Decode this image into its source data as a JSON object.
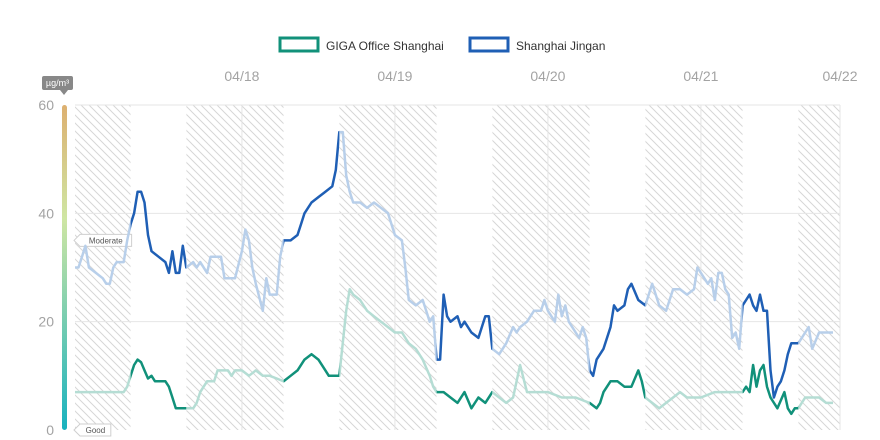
{
  "chart_data": {
    "type": "line",
    "unit": "µg/m³",
    "ylim": [
      0,
      60
    ],
    "yticks": [
      0,
      20,
      40,
      60
    ],
    "xlim": [
      0,
      110
    ],
    "xticks": [
      {
        "x": 24,
        "label": "04/18"
      },
      {
        "x": 46,
        "label": "04/19"
      },
      {
        "x": 68,
        "label": "04/20"
      },
      {
        "x": 90,
        "label": "04/21"
      },
      {
        "x": 110,
        "label": "04/22"
      }
    ],
    "grid": true,
    "legend_placement": "top-center",
    "aqi_levels": [
      {
        "label": "Good",
        "value": 0
      },
      {
        "label": "Moderate",
        "value": 35
      }
    ],
    "open_periods": [
      [
        8,
        16
      ],
      [
        30,
        38
      ],
      [
        52,
        60
      ],
      [
        74,
        82
      ],
      [
        96,
        104
      ]
    ],
    "series": [
      {
        "name": "GIGA Office Shanghai",
        "color": "#11917a",
        "light_color": "#b5ddd4",
        "points": [
          [
            0,
            7
          ],
          [
            2,
            7
          ],
          [
            4,
            7
          ],
          [
            6,
            7
          ],
          [
            7,
            7
          ],
          [
            7.5,
            8
          ],
          [
            8,
            10
          ],
          [
            8.5,
            12
          ],
          [
            9,
            13
          ],
          [
            9.5,
            12.5
          ],
          [
            10,
            11
          ],
          [
            10.5,
            9.5
          ],
          [
            11,
            10
          ],
          [
            11.5,
            9
          ],
          [
            12,
            9
          ],
          [
            13,
            9
          ],
          [
            13.5,
            8
          ],
          [
            14,
            6
          ],
          [
            14.5,
            4
          ],
          [
            15,
            4
          ],
          [
            16,
            4
          ],
          [
            17,
            4
          ],
          [
            17.5,
            5
          ],
          [
            18,
            7
          ],
          [
            19,
            9
          ],
          [
            20,
            9
          ],
          [
            20.5,
            11
          ],
          [
            22,
            11
          ],
          [
            22.5,
            10
          ],
          [
            23,
            11
          ],
          [
            24,
            11
          ],
          [
            25,
            10
          ],
          [
            26,
            11
          ],
          [
            27,
            10
          ],
          [
            28,
            10
          ],
          [
            29,
            9.5
          ],
          [
            30,
            9
          ],
          [
            31,
            10
          ],
          [
            32,
            11
          ],
          [
            33,
            13
          ],
          [
            34,
            14
          ],
          [
            35,
            13
          ],
          [
            36,
            11
          ],
          [
            36.5,
            10
          ],
          [
            38,
            10
          ],
          [
            39,
            22
          ],
          [
            39.5,
            26
          ],
          [
            40,
            25
          ],
          [
            41,
            24
          ],
          [
            42,
            22
          ],
          [
            43,
            21
          ],
          [
            44,
            20
          ],
          [
            45,
            19
          ],
          [
            46,
            18
          ],
          [
            47,
            18
          ],
          [
            48,
            16
          ],
          [
            49,
            15
          ],
          [
            50,
            13
          ],
          [
            51,
            10
          ],
          [
            51.5,
            8
          ],
          [
            52,
            7
          ],
          [
            53,
            7
          ],
          [
            54,
            6
          ],
          [
            55,
            5
          ],
          [
            56,
            7
          ],
          [
            57,
            4
          ],
          [
            58,
            6
          ],
          [
            59,
            5
          ],
          [
            60,
            7
          ],
          [
            61,
            6
          ],
          [
            62,
            5
          ],
          [
            63,
            6
          ],
          [
            64,
            12
          ],
          [
            65,
            7
          ],
          [
            66,
            7
          ],
          [
            68,
            7
          ],
          [
            70,
            6
          ],
          [
            72,
            6
          ],
          [
            74,
            5
          ],
          [
            75,
            4
          ],
          [
            75.5,
            5
          ],
          [
            76,
            7
          ],
          [
            77,
            9
          ],
          [
            78,
            9
          ],
          [
            79,
            8
          ],
          [
            80,
            8
          ],
          [
            81,
            11
          ],
          [
            81.5,
            9
          ],
          [
            82,
            6
          ],
          [
            83,
            5
          ],
          [
            84,
            4
          ],
          [
            85,
            5
          ],
          [
            86,
            6
          ],
          [
            87,
            7
          ],
          [
            88,
            6
          ],
          [
            90,
            6
          ],
          [
            92,
            7
          ],
          [
            94,
            7
          ],
          [
            96,
            7
          ],
          [
            96.5,
            8
          ],
          [
            97,
            7
          ],
          [
            97.5,
            12
          ],
          [
            98,
            8
          ],
          [
            98.5,
            11
          ],
          [
            99,
            12
          ],
          [
            99.5,
            8
          ],
          [
            100,
            6
          ],
          [
            101,
            4
          ],
          [
            102,
            7
          ],
          [
            102.5,
            4
          ],
          [
            103,
            3
          ],
          [
            103.5,
            4
          ],
          [
            104,
            4
          ],
          [
            105,
            6
          ],
          [
            106,
            6
          ],
          [
            107,
            6
          ],
          [
            108,
            5
          ],
          [
            109,
            5
          ]
        ]
      },
      {
        "name": "Shanghai Jingan",
        "color": "#1f5fb5",
        "light_color": "#b8cfea",
        "points": [
          [
            0,
            30
          ],
          [
            0.5,
            30
          ],
          [
            1,
            32
          ],
          [
            1.5,
            34
          ],
          [
            2,
            30
          ],
          [
            3,
            29
          ],
          [
            4,
            28
          ],
          [
            4.5,
            27
          ],
          [
            5,
            27
          ],
          [
            5.5,
            30
          ],
          [
            6,
            31
          ],
          [
            7,
            31
          ],
          [
            7.5,
            35
          ],
          [
            8,
            38
          ],
          [
            8.5,
            40
          ],
          [
            9,
            44
          ],
          [
            9.5,
            44
          ],
          [
            10,
            42
          ],
          [
            10.5,
            36
          ],
          [
            11,
            33
          ],
          [
            12,
            32
          ],
          [
            13,
            31
          ],
          [
            13.5,
            29
          ],
          [
            14,
            33
          ],
          [
            14.5,
            29
          ],
          [
            15,
            29
          ],
          [
            15.5,
            34
          ],
          [
            16,
            30
          ],
          [
            17,
            31
          ],
          [
            17.5,
            30
          ],
          [
            18,
            31
          ],
          [
            19,
            29
          ],
          [
            19.5,
            32
          ],
          [
            20,
            32
          ],
          [
            21,
            32
          ],
          [
            21.5,
            28
          ],
          [
            22,
            28
          ],
          [
            23,
            28
          ],
          [
            24,
            33
          ],
          [
            24.5,
            37
          ],
          [
            25,
            35
          ],
          [
            25.5,
            30
          ],
          [
            26,
            27
          ],
          [
            27,
            22
          ],
          [
            27.5,
            28
          ],
          [
            28,
            25
          ],
          [
            29,
            25
          ],
          [
            29.5,
            32
          ],
          [
            30,
            35
          ],
          [
            31,
            35
          ],
          [
            32,
            36
          ],
          [
            32.5,
            38
          ],
          [
            33,
            40
          ],
          [
            34,
            42
          ],
          [
            35,
            43
          ],
          [
            36,
            44
          ],
          [
            37,
            45
          ],
          [
            37.5,
            48
          ],
          [
            38,
            55
          ],
          [
            38.5,
            55
          ],
          [
            39,
            47
          ],
          [
            39.5,
            44
          ],
          [
            40,
            42
          ],
          [
            41,
            42
          ],
          [
            42,
            41
          ],
          [
            43,
            42
          ],
          [
            44,
            41
          ],
          [
            45,
            40
          ],
          [
            46,
            36
          ],
          [
            47,
            35
          ],
          [
            47.5,
            30
          ],
          [
            48,
            24
          ],
          [
            49,
            23
          ],
          [
            50,
            24
          ],
          [
            50.5,
            22
          ],
          [
            51,
            20
          ],
          [
            51.5,
            21
          ],
          [
            52,
            13
          ],
          [
            52.5,
            13
          ],
          [
            53,
            25
          ],
          [
            53.5,
            21
          ],
          [
            54,
            20
          ],
          [
            55,
            21
          ],
          [
            55.5,
            19
          ],
          [
            56,
            20
          ],
          [
            57,
            18
          ],
          [
            58,
            17
          ],
          [
            59,
            21
          ],
          [
            59.5,
            21
          ],
          [
            60,
            15
          ],
          [
            61,
            14
          ],
          [
            62,
            16
          ],
          [
            63,
            19
          ],
          [
            63.5,
            18
          ],
          [
            64,
            19
          ],
          [
            65,
            20
          ],
          [
            66,
            22
          ],
          [
            67,
            22
          ],
          [
            67.5,
            24
          ],
          [
            68,
            22
          ],
          [
            69,
            20
          ],
          [
            69.5,
            25
          ],
          [
            70,
            21
          ],
          [
            70.5,
            23
          ],
          [
            71,
            20
          ],
          [
            72,
            18
          ],
          [
            72.5,
            17
          ],
          [
            73,
            19
          ],
          [
            73.5,
            17
          ],
          [
            74,
            11
          ],
          [
            74.5,
            10
          ],
          [
            75,
            13
          ],
          [
            76,
            15
          ],
          [
            77,
            19
          ],
          [
            77.5,
            23
          ],
          [
            78,
            22
          ],
          [
            79,
            23
          ],
          [
            79.5,
            26
          ],
          [
            80,
            27
          ],
          [
            81,
            24
          ],
          [
            82,
            23
          ],
          [
            83,
            27
          ],
          [
            84,
            23
          ],
          [
            85,
            22
          ],
          [
            86,
            26
          ],
          [
            87,
            26
          ],
          [
            88,
            25
          ],
          [
            89,
            26
          ],
          [
            89.5,
            30
          ],
          [
            90,
            29
          ],
          [
            91,
            27
          ],
          [
            91.5,
            28
          ],
          [
            92,
            24
          ],
          [
            92.5,
            29
          ],
          [
            93,
            29
          ],
          [
            93.5,
            26
          ],
          [
            94,
            25
          ],
          [
            94.5,
            17
          ],
          [
            95,
            18
          ],
          [
            95.5,
            15
          ],
          [
            96,
            23
          ],
          [
            96.5,
            24
          ],
          [
            97,
            25
          ],
          [
            97.5,
            23
          ],
          [
            98,
            22
          ],
          [
            98.5,
            25
          ],
          [
            99,
            22
          ],
          [
            99.5,
            22
          ],
          [
            100,
            11
          ],
          [
            100.5,
            6
          ],
          [
            101,
            8
          ],
          [
            101.5,
            9
          ],
          [
            102,
            11
          ],
          [
            102.5,
            14
          ],
          [
            103,
            16
          ],
          [
            104,
            16
          ],
          [
            105,
            18
          ],
          [
            105.5,
            19
          ],
          [
            106,
            15
          ],
          [
            107,
            18
          ],
          [
            108,
            18
          ],
          [
            109,
            18
          ]
        ]
      }
    ]
  },
  "colors": {
    "hatch": "#d6d6d6",
    "grid": "#e6e6e6",
    "tick": "#a3a3a3",
    "unit_badge": "#888888",
    "gradient_top": "#ddb070",
    "gradient_mid": "#cfe6a3",
    "gradient_bottom": "#18b2bf"
  }
}
